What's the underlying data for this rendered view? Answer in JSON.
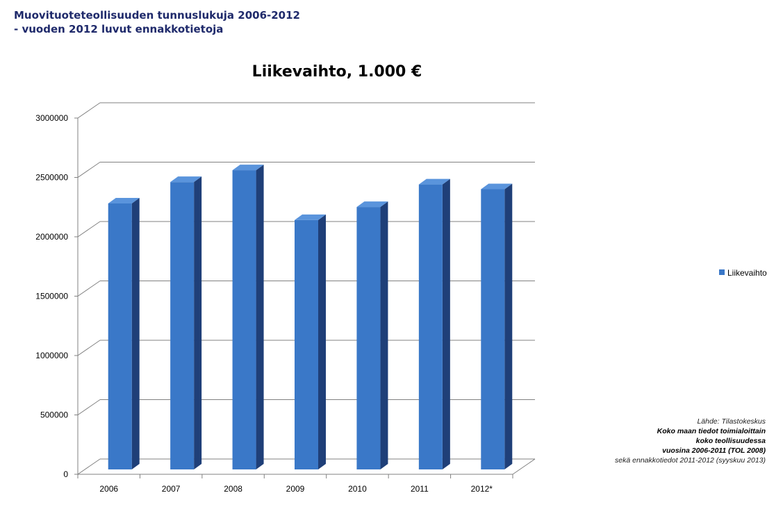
{
  "header": {
    "line1": "Muovituoteteollisuuden tunnuslukuja 2006-2012",
    "line2": "- vuoden 2012 luvut ennakkotietoja"
  },
  "source": {
    "line1": "Lähde: Tilastokeskus",
    "line2": "Koko maan tiedot toimialoittain",
    "line3": "koko teollisuudessa",
    "line4": "vuosina 2006-2011  (TOL 2008)",
    "line5": "sekä ennakkotiedot 2011-2012  (syyskuu 2013)"
  },
  "chart_data": {
    "type": "bar",
    "title": "Liikevaihto, 1.000 €",
    "categories": [
      "2006",
      "2007",
      "2008",
      "2009",
      "2010",
      "2011",
      "2012*"
    ],
    "series": [
      {
        "name": "Liikevaihto",
        "values": [
          2240000,
          2420000,
          2520000,
          2100000,
          2210000,
          2400000,
          2360000
        ]
      }
    ],
    "ylim": [
      0,
      3000000
    ],
    "yticks": [
      "0",
      "500000",
      "1000000",
      "1500000",
      "2000000",
      "2500000",
      "3000000"
    ],
    "grid": true,
    "legend": "right",
    "colors": {
      "bar_front": "#3a78c8",
      "bar_side": "#1f3f78",
      "bar_top": "#5a94dc",
      "grid": "#808080"
    }
  }
}
